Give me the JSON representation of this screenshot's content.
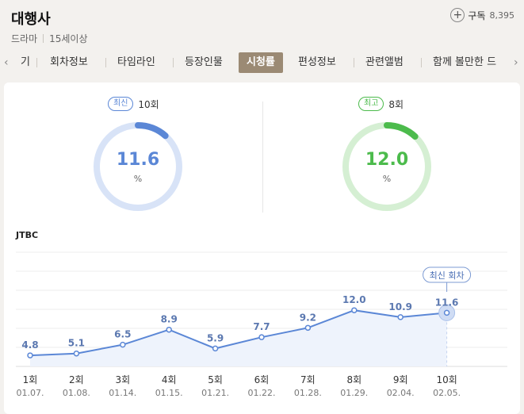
{
  "header": {
    "title": "대행사",
    "genre": "드라마",
    "rating": "15세이상",
    "subscribe_label": "구독",
    "subscribe_count": "8,395"
  },
  "tabs": {
    "items": [
      {
        "label": "기"
      },
      {
        "label": "회차정보"
      },
      {
        "label": "타임라인"
      },
      {
        "label": "등장인물"
      },
      {
        "label": "시청률",
        "active": true
      },
      {
        "label": "편성정보"
      },
      {
        "label": "관련앨범"
      },
      {
        "label": "함께 볼만한 드"
      }
    ]
  },
  "summary": {
    "latest": {
      "badge": "최신",
      "episode": "10회",
      "value": "11.6",
      "unit": "%",
      "fraction": 0.116,
      "color": "#5b87d6",
      "track": "#d8e3f7"
    },
    "best": {
      "badge": "최고",
      "episode": "8회",
      "value": "12.0",
      "unit": "%",
      "fraction": 0.12,
      "color": "#4cbb4c",
      "track": "#d5efd3"
    }
  },
  "channel": "JTBC",
  "chart_data": {
    "type": "area",
    "categories": [
      "1회",
      "2회",
      "3회",
      "4회",
      "5회",
      "6회",
      "7회",
      "8회",
      "9회",
      "10회"
    ],
    "dates": [
      "01.07.",
      "01.08.",
      "01.14.",
      "01.15.",
      "01.21.",
      "01.22.",
      "01.28.",
      "01.29.",
      "02.04.",
      "02.05."
    ],
    "values": [
      4.8,
      5.1,
      6.5,
      8.9,
      5.9,
      7.7,
      9.2,
      12.0,
      10.9,
      11.6
    ],
    "value_labels": [
      "4.8",
      "5.1",
      "6.5",
      "8.9",
      "5.9",
      "7.7",
      "9.2",
      "12.0",
      "10.9",
      "11.6"
    ],
    "latest_label": "최신 회차",
    "line_color": "#5b87d6",
    "fill_color": "#eef3fc",
    "label_color": "#5b78b0"
  }
}
